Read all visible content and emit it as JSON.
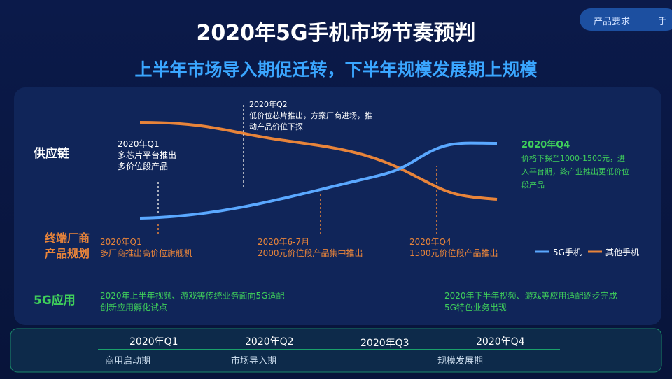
{
  "header": {
    "title": "2020年5G手机市场节奏预判",
    "subtitle": "上半年市场导入期促迁转，下半年规模发展期上规模",
    "tabs": [
      "产品要求",
      "手"
    ]
  },
  "rows": [
    "供应链",
    "终端厂商\n产品规划",
    "5G应用"
  ],
  "supply": [
    {
      "label": "2020年Q1",
      "lines": [
        "多芯片平台推出",
        "多价位段产品"
      ]
    },
    {
      "label": "2020年Q2",
      "lines": [
        "低价位芯片推出，方案厂商进场，推",
        "动产品价位下探"
      ]
    },
    {
      "label": "2020年Q4",
      "lines": [
        "价格下探至1000-1500元，进",
        "入平台期，终产业推出更低价位",
        "段产品"
      ]
    }
  ],
  "terminal": [
    {
      "label": "2020年Q1",
      "text": "多厂商推出高价位旗舰机"
    },
    {
      "label": "2020年6-7月",
      "text": "2000元价位段产品集中推出"
    },
    {
      "label": "2020年Q4",
      "text": "1500元价位段产品推出"
    }
  ],
  "legend": [
    "5G手机",
    "其他手机"
  ],
  "apps": [
    [
      "2020年上半年视频、游戏等传统业务面向5G适配",
      "创新应用孵化试点"
    ],
    [
      "2020年下半年视频、游戏等应用适配逐步完成",
      "5G特色业务出现"
    ]
  ],
  "timeline": {
    "quarters": [
      "2020年Q1",
      "2020年Q2",
      "2020年Q3",
      "2020年Q4"
    ],
    "phases": [
      "商用启动期",
      "市场导入期",
      "规模发展期"
    ]
  }
}
